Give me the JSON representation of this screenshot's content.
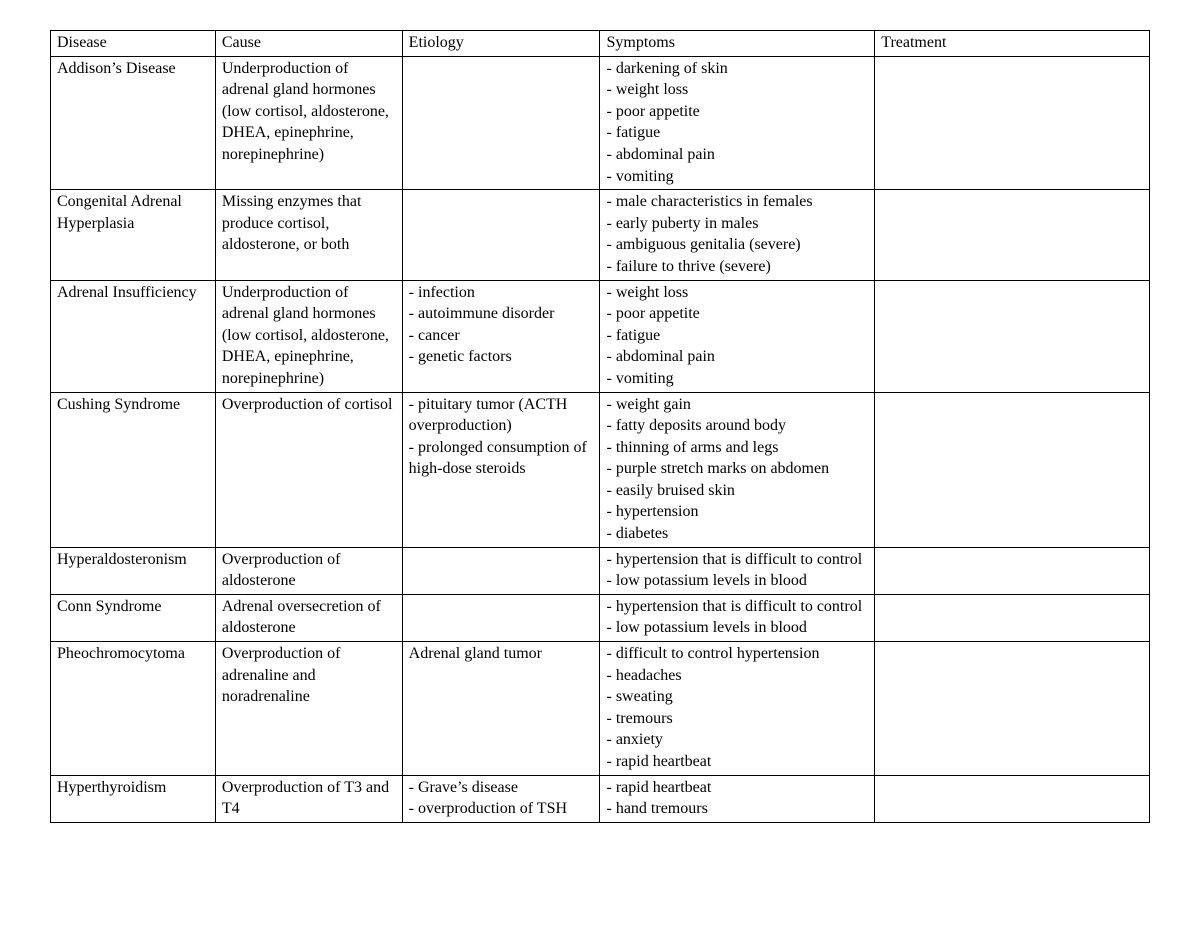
{
  "table": {
    "font_family": "Times New Roman",
    "font_size_pt": 12,
    "border_color": "#000000",
    "background_color": "#ffffff",
    "text_color": "#000000",
    "column_widths_pct": [
      15,
      17,
      18,
      25,
      25
    ],
    "columns": [
      "Disease",
      "Cause",
      "Etiology",
      "Symptoms",
      "Treatment"
    ],
    "rows": [
      {
        "disease": "Addison’s Disease",
        "cause": "Underproduction of adrenal gland hormones (low cortisol, aldosterone, DHEA, epinephrine, norepinephrine)",
        "etiology": "",
        "symptoms": [
          "- darkening of skin",
          "- weight loss",
          "- poor appetite",
          "- fatigue",
          "- abdominal pain",
          "- vomiting"
        ],
        "treatment": ""
      },
      {
        "disease": "Congenital Adrenal Hyperplasia",
        "cause": "Missing enzymes that produce cortisol, aldosterone, or both",
        "etiology": "",
        "symptoms": [
          "- male characteristics in females",
          "- early puberty in males",
          "- ambiguous genitalia (severe)",
          "- failure to thrive (severe)"
        ],
        "treatment": ""
      },
      {
        "disease": "Adrenal Insufficiency",
        "cause": "Underproduction of adrenal gland hormones (low cortisol, aldosterone, DHEA, epinephrine, norepinephrine)",
        "etiology": [
          "- infection",
          "- autoimmune disorder",
          "- cancer",
          "- genetic factors"
        ],
        "symptoms": [
          "- weight loss",
          "- poor appetite",
          "- fatigue",
          "- abdominal pain",
          "- vomiting"
        ],
        "treatment": ""
      },
      {
        "disease": "Cushing Syndrome",
        "cause": "Overproduction of cortisol",
        "etiology": [
          "- pituitary tumor (ACTH overproduction)",
          "- prolonged consumption of high-dose steroids"
        ],
        "symptoms": [
          "- weight gain",
          "- fatty deposits around body",
          "- thinning of arms and legs",
          "- purple stretch marks on abdomen",
          "- easily bruised skin",
          "- hypertension",
          "- diabetes"
        ],
        "treatment": ""
      },
      {
        "disease": "Hyperaldosteronism",
        "cause": "Overproduction of aldosterone",
        "etiology": "",
        "symptoms": [
          "- hypertension that is difficult to control",
          "- low potassium levels in blood"
        ],
        "treatment": ""
      },
      {
        "disease": "Conn Syndrome",
        "cause": "Adrenal oversecretion of aldosterone",
        "etiology": "",
        "symptoms": [
          "- hypertension that is difficult to control",
          "- low potassium levels in blood"
        ],
        "treatment": ""
      },
      {
        "disease": "Pheochromocytoma",
        "cause": "Overproduction of adrenaline and noradrenaline",
        "etiology": "Adrenal gland tumor",
        "symptoms": [
          "- difficult to control hypertension",
          "- headaches",
          "- sweating",
          "- tremours",
          "- anxiety",
          "- rapid heartbeat"
        ],
        "treatment": ""
      },
      {
        "disease": "Hyperthyroidism",
        "cause": "Overproduction of T3 and T4",
        "etiology": [
          "- Grave’s disease",
          "- overproduction of TSH"
        ],
        "symptoms": [
          "- rapid heartbeat",
          "- hand tremours"
        ],
        "treatment": ""
      }
    ]
  }
}
